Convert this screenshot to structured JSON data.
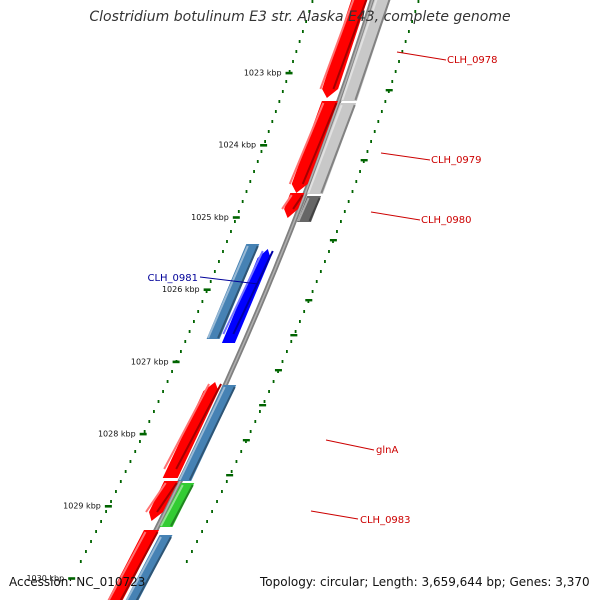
{
  "title": "Clostridium botulinum E3 str. Alaska E43, complete genome",
  "accession": "Accession: NC_010723",
  "topology": "Topology: circular; Length: 3,659,644 bp; Genes: 3,370",
  "colors": {
    "forward_red": "#ff0000",
    "reverse_blue": "#0000ff",
    "steel_blue": "#4682b4",
    "green": "#33cc33",
    "light_gray": "#c8c8c8",
    "dark_gray": "#666666",
    "tick_green": "#006400",
    "label_red": "#cc0000",
    "label_blue": "#000099"
  },
  "ticks": [
    {
      "label": "1023 kbp"
    },
    {
      "label": "1024 kbp"
    },
    {
      "label": "1025 kbp"
    },
    {
      "label": "1026 kbp"
    },
    {
      "label": "1027 kbp"
    },
    {
      "label": "1028 kbp"
    },
    {
      "label": "1029 kbp"
    },
    {
      "label": "1030 kbp"
    }
  ],
  "genes": [
    {
      "label": "CLH_0978",
      "label_color": "label_red"
    },
    {
      "label": "CLH_0979",
      "label_color": "label_red"
    },
    {
      "label": "CLH_0980",
      "label_color": "label_red"
    },
    {
      "label": "CLH_0981",
      "label_color": "label_blue"
    },
    {
      "label": "glnA",
      "label_color": "label_red"
    },
    {
      "label": "CLH_0983",
      "label_color": "label_red"
    }
  ]
}
